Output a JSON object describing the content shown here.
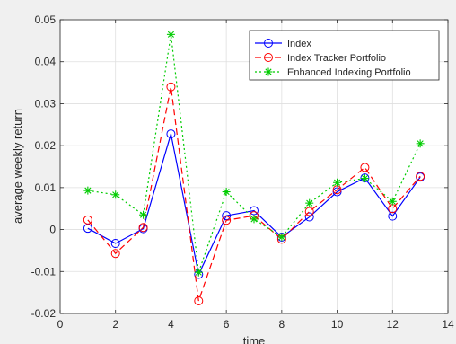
{
  "chart_data": {
    "type": "line",
    "xlabel": "time",
    "ylabel": "average weekly return",
    "xlim": [
      0,
      14
    ],
    "ylim": [
      -0.02,
      0.05
    ],
    "grid": true,
    "legend_position": "top-right",
    "x_ticks": [
      0,
      2,
      4,
      6,
      8,
      10,
      12,
      14
    ],
    "x_tick_labels": [
      "0",
      "2",
      "4",
      "6",
      "8",
      "10",
      "12",
      "14"
    ],
    "y_ticks": [
      -0.02,
      -0.01,
      0,
      0.01,
      0.02,
      0.03,
      0.04,
      0.05
    ],
    "y_tick_labels": [
      "-0.02",
      "-0.01",
      "0",
      "0.01",
      "0.02",
      "0.03",
      "0.04",
      "0.05"
    ],
    "x": [
      1,
      2,
      3,
      4,
      5,
      6,
      7,
      8,
      9,
      10,
      11,
      12,
      13
    ],
    "series": [
      {
        "name": "Index",
        "color": "#0000ff",
        "line_style": "solid",
        "marker": "circle",
        "values": [
          0.0003,
          -0.0033,
          0.0002,
          0.0228,
          -0.0107,
          0.0033,
          0.0045,
          -0.0018,
          0.003,
          0.009,
          0.0123,
          0.0032,
          0.0125
        ]
      },
      {
        "name": "Index Tracker Portfolio",
        "color": "#ff0000",
        "line_style": "dashed",
        "marker": "circle",
        "values": [
          0.0023,
          -0.0057,
          0.0005,
          0.034,
          -0.017,
          0.0022,
          0.0033,
          -0.0023,
          0.0043,
          0.0095,
          0.0148,
          0.005,
          0.0127
        ]
      },
      {
        "name": "Enhanced Indexing Portfolio",
        "color": "#00cc00",
        "line_style": "dotted",
        "marker": "asterisk",
        "values": [
          0.0093,
          0.0083,
          0.0035,
          0.0465,
          -0.0102,
          0.009,
          0.0025,
          -0.0018,
          0.0063,
          0.0112,
          0.0122,
          0.0067,
          0.0205
        ]
      }
    ]
  }
}
